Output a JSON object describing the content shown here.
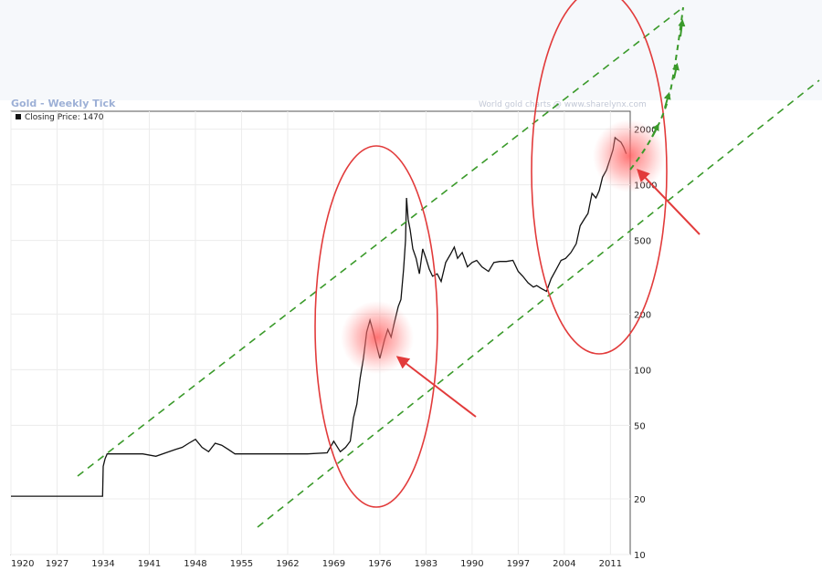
{
  "header": {
    "title": "Gold - Weekly Tick",
    "source": "World gold charts @ www.sharelynx.com"
  },
  "chart_data": {
    "type": "line",
    "title": "Gold - Weekly Tick",
    "legend": "Closing Price: 1470",
    "xlabel": "",
    "ylabel": "",
    "xlim": [
      1920,
      2014
    ],
    "ylim": [
      10,
      2500
    ],
    "y_scale": "log",
    "grid": true,
    "legend_position": "top-left",
    "x_ticks": [
      1920,
      1927,
      1934,
      1941,
      1948,
      1955,
      1962,
      1969,
      1976,
      1983,
      1990,
      1997,
      2004,
      2011
    ],
    "y_ticks": [
      10,
      20,
      50,
      100,
      200,
      500,
      1000,
      2000
    ],
    "y_tick_labels": [
      "10",
      "20",
      "50",
      "100",
      "200",
      "500",
      "1000",
      "2000"
    ],
    "series": [
      {
        "name": "Closing Price",
        "color": "#111111",
        "x": [
          1920,
          1933.9,
          1934.0,
          1934.3,
          1934.6,
          1936,
          1938,
          1940,
          1942,
          1944,
          1945,
          1946,
          1947,
          1948,
          1949,
          1950,
          1951,
          1952,
          1953,
          1954,
          1955,
          1958,
          1962,
          1965,
          1968,
          1969.0,
          1970.0,
          1970.8,
          1971.5,
          1972.0,
          1972.5,
          1973.0,
          1973.5,
          1974.0,
          1974.5,
          1975.0,
          1975.5,
          1976.0,
          1976.7,
          1977.2,
          1977.7,
          1978.2,
          1978.8,
          1979.2,
          1979.6,
          1979.9,
          1980.05,
          1980.3,
          1980.6,
          1981.0,
          1981.5,
          1982.0,
          1982.5,
          1983.0,
          1983.5,
          1984.0,
          1984.7,
          1985.3,
          1986.0,
          1986.7,
          1987.3,
          1987.8,
          1988.5,
          1989.3,
          1990.0,
          1990.7,
          1991.5,
          1992.5,
          1993.3,
          1994.2,
          1995.2,
          1996.2,
          1997.0,
          1997.7,
          1998.5,
          1999.3,
          1999.8,
          2000.5,
          2001.3,
          2002.0,
          2002.8,
          2003.5,
          2004.2,
          2005.0,
          2005.8,
          2006.4,
          2007.0,
          2007.6,
          2008.2,
          2008.8,
          2009.3,
          2009.8,
          2010.4,
          2011.0,
          2011.4,
          2011.7,
          2012.1,
          2012.6,
          2013.0,
          2013.4
        ],
        "y": [
          20.67,
          20.67,
          30,
          33,
          35,
          35,
          35,
          35,
          34,
          36,
          37,
          38,
          40,
          42,
          38,
          36,
          40,
          39,
          37,
          35,
          35,
          35,
          35,
          35,
          35.5,
          41,
          36,
          38,
          41,
          55,
          65,
          90,
          115,
          160,
          185,
          160,
          135,
          115,
          145,
          165,
          150,
          180,
          220,
          240,
          350,
          500,
          850,
          650,
          570,
          450,
          400,
          330,
          450,
          400,
          350,
          320,
          330,
          300,
          380,
          420,
          460,
          400,
          430,
          360,
          380,
          390,
          360,
          340,
          380,
          385,
          385,
          390,
          340,
          320,
          295,
          280,
          285,
          275,
          265,
          310,
          350,
          390,
          400,
          430,
          480,
          600,
          650,
          700,
          900,
          850,
          930,
          1100,
          1200,
          1400,
          1550,
          1800,
          1750,
          1700,
          1600,
          1470
        ]
      }
    ]
  },
  "overlays": {
    "trend_color": "#3a9a2a",
    "ellipse_color": "#e23b3b",
    "arrow_color": "#e23b3b",
    "highlight_color": "#ff6060",
    "projection_color": "#3a9a2a"
  }
}
